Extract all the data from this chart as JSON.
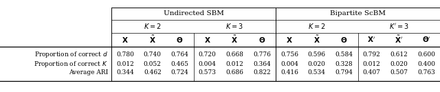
{
  "title_row": [
    "Undirected SBM",
    "Bipartite ScBM"
  ],
  "k_row_labels": [
    "$K = 2$",
    "$K = 3$",
    "$K = 2$",
    "$K^{\\prime} = 3$"
  ],
  "col_headers": [
    "$\\mathbf{X}$",
    "$\\tilde{\\mathbf{X}}$",
    "$\\mathbf{\\Theta}$",
    "$\\mathbf{X}$",
    "$\\tilde{\\mathbf{X}}$",
    "$\\mathbf{\\Theta}$",
    "$\\mathbf{X}$",
    "$\\tilde{\\mathbf{X}}$",
    "$\\mathbf{\\Theta}$",
    "$\\mathbf{X}^{\\prime}$",
    "$\\tilde{\\mathbf{X}}^{\\prime}$",
    "$\\mathbf{\\Theta}^{\\prime}$"
  ],
  "row_labels": [
    "Proportion of correct $d$",
    "Proportion of correct $K$",
    "Average ARI"
  ],
  "data": [
    [
      0.78,
      0.74,
      0.764,
      0.72,
      0.668,
      0.776,
      0.756,
      0.596,
      0.584,
      0.792,
      0.612,
      0.6
    ],
    [
      0.012,
      0.052,
      0.465,
      0.004,
      0.012,
      0.364,
      0.004,
      0.02,
      0.328,
      0.012,
      0.02,
      0.4
    ],
    [
      0.344,
      0.462,
      0.724,
      0.573,
      0.686,
      0.822,
      0.416,
      0.534,
      0.794,
      0.407,
      0.507,
      0.763
    ]
  ],
  "background_color": "#ffffff",
  "line_color": "#000000",
  "text_color": "#000000",
  "font_size": 6.5,
  "header_font_size": 7.5
}
